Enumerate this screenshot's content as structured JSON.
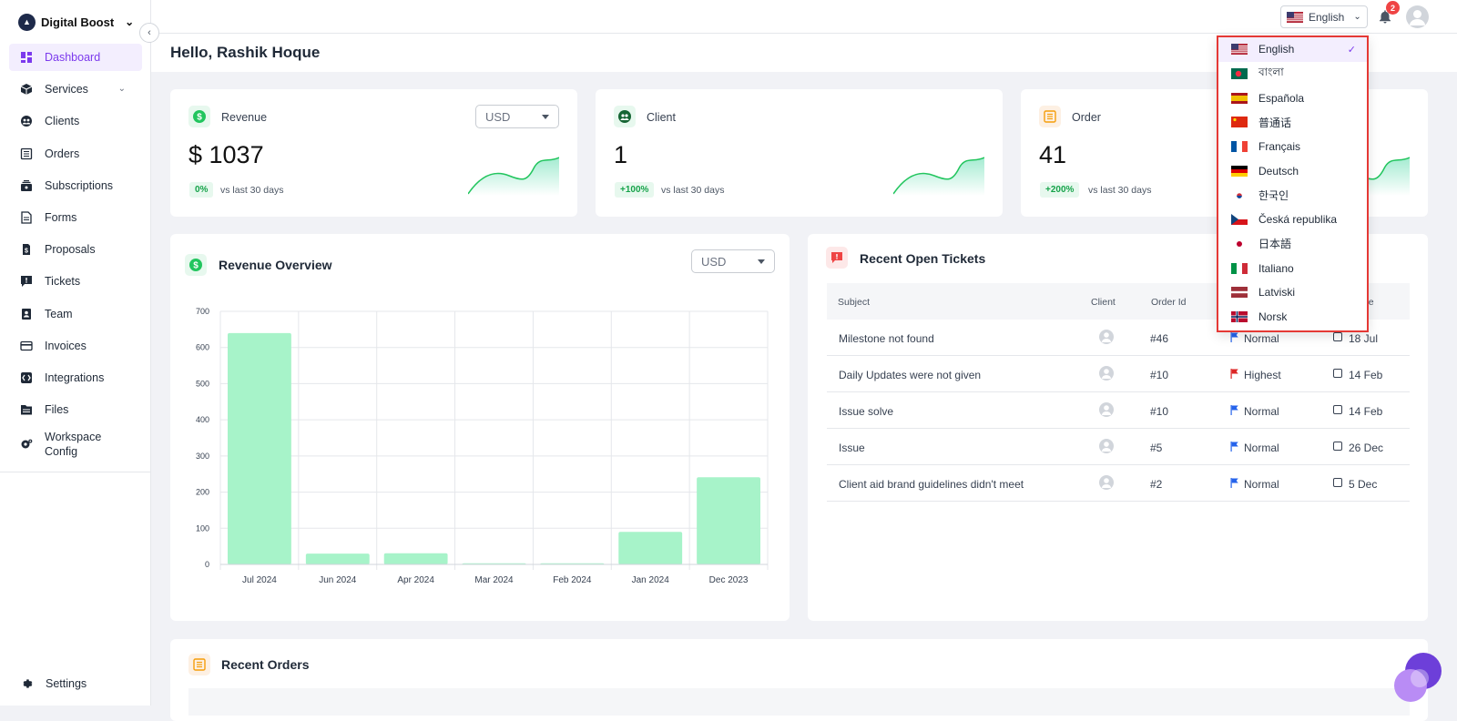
{
  "workspace": {
    "name": "Digital Boost"
  },
  "sidebar": {
    "items": [
      {
        "label": "Dashboard",
        "icon": "dashboard-icon",
        "active": true
      },
      {
        "label": "Services",
        "icon": "cube-icon"
      },
      {
        "label": "Clients",
        "icon": "clients-icon"
      },
      {
        "label": "Orders",
        "icon": "orders-icon"
      },
      {
        "label": "Subscriptions",
        "icon": "subscriptions-icon"
      },
      {
        "label": "Forms",
        "icon": "forms-icon"
      },
      {
        "label": "Proposals",
        "icon": "proposals-icon"
      },
      {
        "label": "Tickets",
        "icon": "tickets-icon"
      },
      {
        "label": "Team",
        "icon": "team-icon"
      },
      {
        "label": "Invoices",
        "icon": "invoices-icon"
      },
      {
        "label": "Integrations",
        "icon": "integrations-icon"
      },
      {
        "label": "Files",
        "icon": "files-icon"
      },
      {
        "label": "Workspace Config",
        "label_line1": "Workspace",
        "label_line2": "Config",
        "icon": "gear-icon"
      }
    ],
    "settings_label": "Settings"
  },
  "topbar": {
    "language": "English",
    "notification_count": "2"
  },
  "greeting": "Hello, Rashik Hoque",
  "stats": [
    {
      "title": "Revenue",
      "value": "$ 1037",
      "change": "0%",
      "vs": "vs last 30 days",
      "currency": "USD"
    },
    {
      "title": "Client",
      "value": "1",
      "change": "+100%",
      "vs": "vs last 30 days"
    },
    {
      "title": "Order",
      "value": "41",
      "change": "+200%",
      "vs": "vs last 30 days"
    }
  ],
  "revenue_overview": {
    "title": "Revenue Overview",
    "currency": "USD"
  },
  "chart_data": {
    "type": "bar",
    "categories": [
      "Jul 2024",
      "Jun 2024",
      "Apr 2024",
      "Mar 2024",
      "Feb 2024",
      "Jan 2024",
      "Dec 2023"
    ],
    "values": [
      640,
      30,
      31,
      3,
      3,
      90,
      241
    ],
    "ylim": [
      0,
      700
    ],
    "yticks": [
      0,
      100,
      200,
      300,
      400,
      500,
      600,
      700
    ],
    "color": "#a7f3c9",
    "grid": true
  },
  "tickets": {
    "title": "Recent Open Tickets",
    "headers": {
      "subject": "Subject",
      "client": "Client",
      "order_id": "Order Id",
      "date": "ate"
    },
    "rows": [
      {
        "subject": "Milestone not found",
        "order_id": "#46",
        "priority": "Normal",
        "date": "18 Jul"
      },
      {
        "subject": "Daily Updates were not given",
        "order_id": "#10",
        "priority": "Highest",
        "date": "14 Feb"
      },
      {
        "subject": "Issue solve",
        "order_id": "#10",
        "priority": "Normal",
        "date": "14 Feb"
      },
      {
        "subject": "Issue",
        "order_id": "#5",
        "priority": "Normal",
        "date": "26 Dec"
      },
      {
        "subject": "Client aid brand guidelines didn't meet",
        "order_id": "#2",
        "priority": "Normal",
        "date": "5 Dec"
      }
    ]
  },
  "recent_orders": {
    "title": "Recent Orders"
  },
  "languages": [
    {
      "label": "English",
      "flag": "us",
      "selected": true
    },
    {
      "label": "বাংলা",
      "flag": "bd"
    },
    {
      "label": "Española",
      "flag": "es"
    },
    {
      "label": "普通话",
      "flag": "cn"
    },
    {
      "label": "Français",
      "flag": "fr"
    },
    {
      "label": "Deutsch",
      "flag": "de"
    },
    {
      "label": "한국인",
      "flag": "kr"
    },
    {
      "label": "Česká republika",
      "flag": "cz"
    },
    {
      "label": "日本語",
      "flag": "jp"
    },
    {
      "label": "Italiano",
      "flag": "it"
    },
    {
      "label": "Latviski",
      "flag": "lv"
    },
    {
      "label": "Norsk",
      "flag": "no"
    }
  ],
  "colors": {
    "accent": "#7c3aed",
    "green": "#16a34a",
    "bar": "#a7f3c9",
    "dropdown_border": "#e53935"
  }
}
